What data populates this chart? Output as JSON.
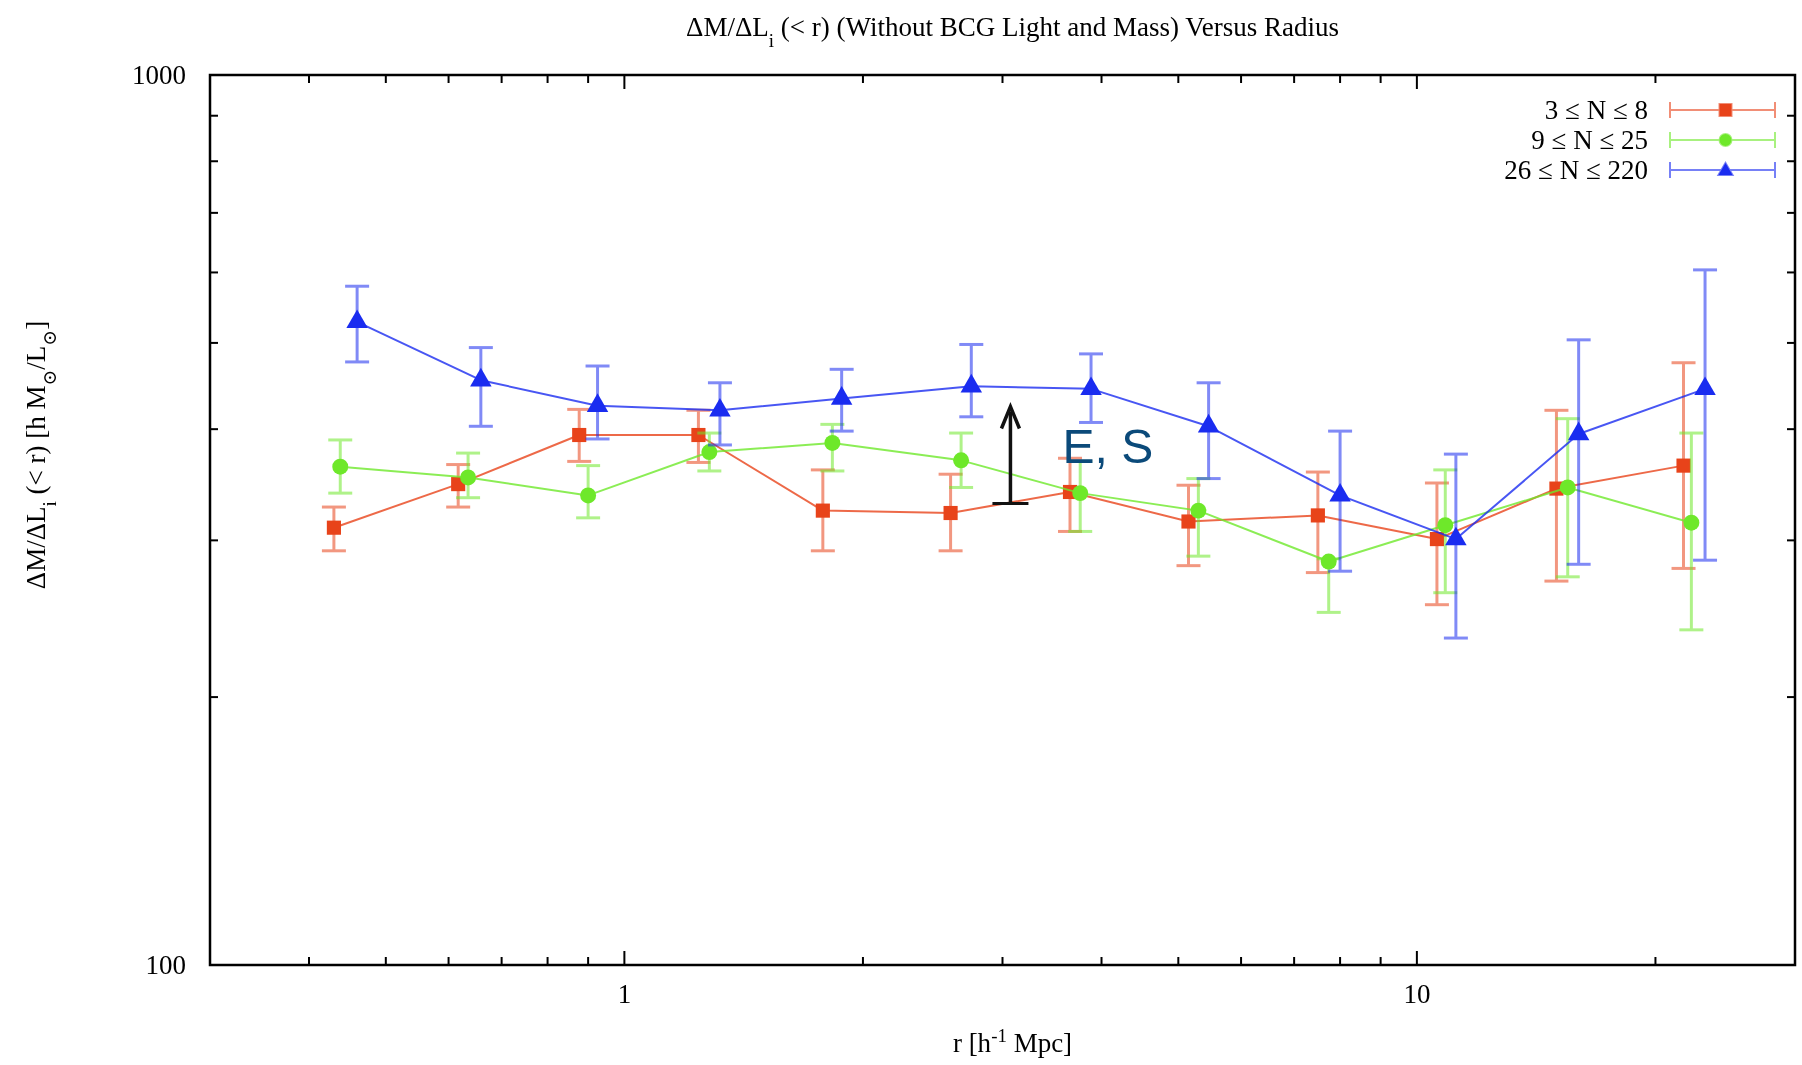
{
  "chart_data": {
    "type": "line",
    "title": "ΔM/ΔL$_{i}$ (< r) (Without BCG Light and Mass) Versus Radius",
    "xlabel": "r [h$^{-1}$ Mpc]",
    "ylabel": "ΔM/ΔL$_{i}$ (< r) [h M$_{⊙}$/L$_{⊙}$]",
    "log": "xy",
    "xlim": [
      0.3,
      30
    ],
    "ylim": [
      100,
      1000
    ],
    "xticks": [
      {
        "value": 0.3,
        "label": null
      },
      {
        "value": 0.4,
        "label": null
      },
      {
        "value": 0.5,
        "label": null
      },
      {
        "value": 0.6,
        "label": null
      },
      {
        "value": 0.7,
        "label": null
      },
      {
        "value": 0.8,
        "label": null
      },
      {
        "value": 0.9,
        "label": null
      },
      1,
      {
        "value": 2,
        "label": null
      },
      {
        "value": 3,
        "label": null
      },
      {
        "value": 4,
        "label": null
      },
      {
        "value": 5,
        "label": null
      },
      {
        "value": 6,
        "label": null
      },
      {
        "value": 7,
        "label": null
      },
      {
        "value": 8,
        "label": null
      },
      {
        "value": 9,
        "label": null
      },
      10,
      {
        "value": 20,
        "label": null
      },
      {
        "value": 30,
        "label": null
      }
    ],
    "yticks": [
      100,
      {
        "value": 200,
        "label": null
      },
      {
        "value": 300,
        "label": null
      },
      {
        "value": 400,
        "label": null
      },
      {
        "value": 500,
        "label": null
      },
      {
        "value": 600,
        "label": null
      },
      {
        "value": 700,
        "label": null
      },
      {
        "value": 800,
        "label": null
      },
      {
        "value": 900,
        "label": null
      },
      1000
    ],
    "legend": "top right",
    "grid": false,
    "line_style": "solid",
    "annotations": [
      {
        "text": "E, S",
        "x": 3.07,
        "y": 330
      }
    ],
    "series": [
      {
        "name": "3 ≤ N ≤ 8",
        "color": "#e8431a",
        "marker": "square",
        "x": [
          0.43,
          0.617,
          0.877,
          1.24,
          1.78,
          2.58,
          3.65,
          5.15,
          7.5,
          10.6,
          15,
          21.7
        ],
        "values": [
          310,
          347,
          394,
          394,
          324,
          322,
          340,
          315,
          320,
          301,
          343,
          364
        ],
        "errors": [
          [
            292,
            327
          ],
          [
            327,
            365
          ],
          [
            368,
            421
          ],
          [
            367,
            420
          ],
          [
            292,
            360
          ],
          [
            292,
            356
          ],
          [
            307,
            371
          ],
          [
            281,
            346
          ],
          [
            276,
            358
          ],
          [
            254,
            348
          ],
          [
            270,
            420
          ],
          [
            279,
            475
          ]
        ]
      },
      {
        "name": "9 ≤ N ≤ 25",
        "color": "#6ee82a",
        "marker": "circle",
        "x": [
          0.438,
          0.635,
          0.9,
          1.28,
          1.83,
          2.66,
          3.76,
          5.3,
          7.74,
          10.86,
          15.5,
          22.2
        ],
        "values": [
          363,
          353,
          337,
          377,
          386,
          369,
          339,
          324,
          284,
          312,
          344,
          314
        ],
        "errors": [
          [
            339,
            389
          ],
          [
            335,
            376
          ],
          [
            318,
            364
          ],
          [
            359,
            396
          ],
          [
            359,
            405
          ],
          [
            344,
            396
          ],
          [
            307,
            368
          ],
          [
            288,
            352
          ],
          [
            249,
            286
          ],
          [
            262,
            360
          ],
          [
            273,
            411
          ],
          [
            238,
            396
          ]
        ]
      },
      {
        "name": "26 ≤ N ≤ 220",
        "color": "#1a2cf0",
        "marker": "triangle",
        "x": [
          0.46,
          0.659,
          0.925,
          1.32,
          1.88,
          2.74,
          3.88,
          5.46,
          8.0,
          11.2,
          16.0,
          23.1
        ],
        "values": [
          528,
          454,
          425,
          420,
          433,
          447,
          444,
          403,
          337,
          301,
          395,
          444
        ],
        "errors": [
          [
            476,
            579
          ],
          [
            403,
            494
          ],
          [
            390,
            471
          ],
          [
            384,
            451
          ],
          [
            398,
            467
          ],
          [
            413,
            498
          ],
          [
            407,
            486
          ],
          [
            352,
            451
          ],
          [
            277,
            398
          ],
          [
            233,
            375
          ],
          [
            282,
            504
          ],
          [
            285,
            604
          ]
        ]
      }
    ]
  }
}
